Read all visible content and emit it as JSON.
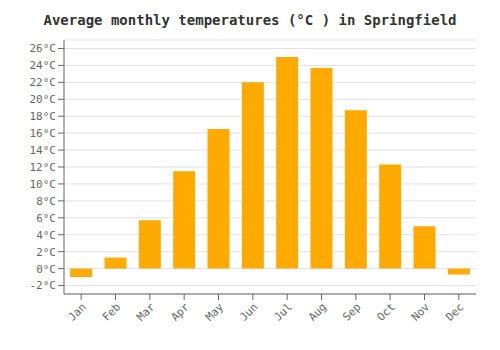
{
  "chart_data": {
    "type": "bar",
    "title": "Average monthly temperatures (°C ) in Springfield",
    "categories": [
      "Jan",
      "Feb",
      "Mar",
      "Apr",
      "May",
      "Jun",
      "Jul",
      "Aug",
      "Sep",
      "Oct",
      "Nov",
      "Dec"
    ],
    "values": [
      -1.0,
      1.3,
      5.7,
      11.5,
      16.5,
      22.0,
      25.0,
      23.7,
      18.7,
      12.3,
      5.0,
      -0.7
    ],
    "color": "#FFAA00",
    "ylim": [
      -3,
      27
    ],
    "yticks": [
      {
        "value": -2,
        "label": "-2°C"
      },
      {
        "value": 0,
        "label": "0°C"
      },
      {
        "value": 2,
        "label": "2°C"
      },
      {
        "value": 4,
        "label": "4°C"
      },
      {
        "value": 6,
        "label": "6°C"
      },
      {
        "value": 8,
        "label": "8°C"
      },
      {
        "value": 10,
        "label": "10°C"
      },
      {
        "value": 12,
        "label": "12°C"
      },
      {
        "value": 14,
        "label": "14°C"
      },
      {
        "value": 16,
        "label": "16°C"
      },
      {
        "value": 18,
        "label": "18°C"
      },
      {
        "value": 20,
        "label": "20°C"
      },
      {
        "value": 22,
        "label": "22°C"
      },
      {
        "value": 24,
        "label": "24°C"
      },
      {
        "value": 26,
        "label": "26°C"
      }
    ],
    "grid": true
  }
}
